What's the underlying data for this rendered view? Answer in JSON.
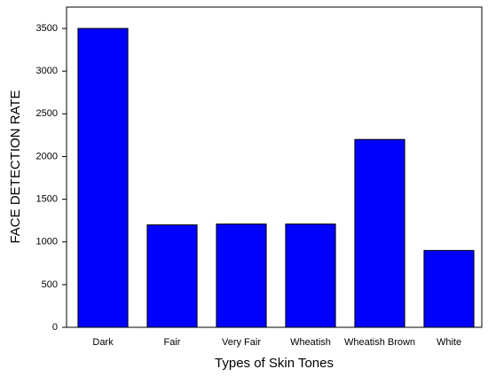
{
  "chart_data": {
    "type": "bar",
    "x_label": "Types of Skin Tones",
    "y_label": "FACE DETECTION RATE",
    "categories": [
      "Dark",
      "Fair",
      "Very Fair",
      "Wheatish",
      "Wheatish Brown",
      "White"
    ],
    "values": [
      3500,
      1200,
      1210,
      1210,
      2200,
      900
    ],
    "color": "#0000ff",
    "ylim": [
      0,
      3750
    ],
    "yticks": [
      0,
      500,
      1000,
      1500,
      2000,
      2500,
      3000,
      3500
    ],
    "grid": false
  }
}
